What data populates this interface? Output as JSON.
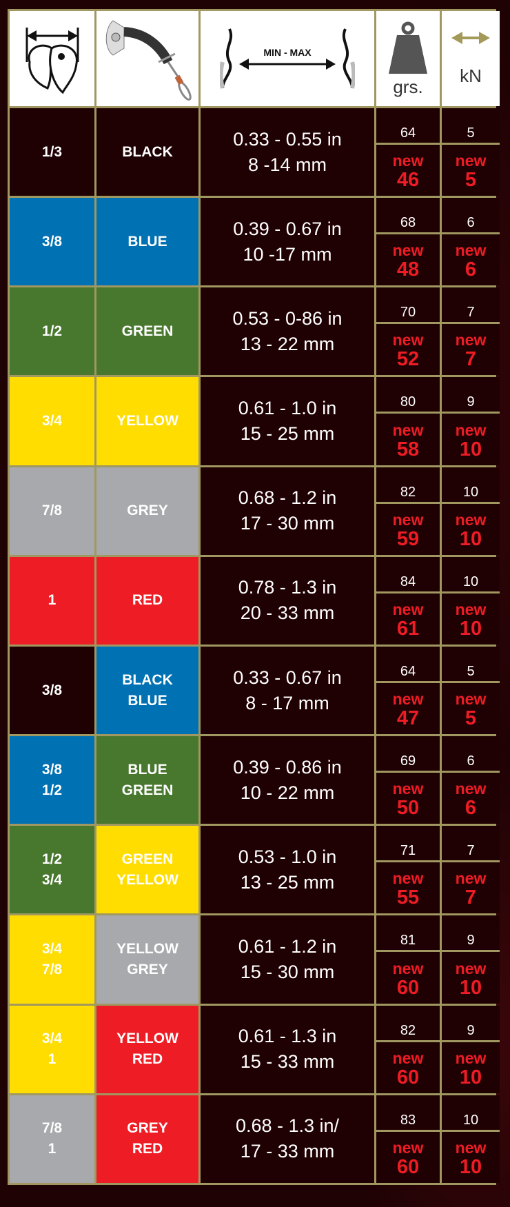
{
  "header": {
    "weight_unit": "grs.",
    "strength_unit": "kN",
    "range_label": "MIN - MAX"
  },
  "colors": {
    "black": "#200103",
    "blue": "#0071b3",
    "green": "#48772e",
    "yellow": "#ffdd00",
    "grey": "#a7a9ac",
    "red": "#ee1c25",
    "new_text": "#ee1c25",
    "border": "#a09860"
  },
  "new_label": "new",
  "rows": [
    {
      "size": "1/3",
      "size_color": "black",
      "name": "BLACK",
      "name_color": "black",
      "range": "0.33 - 0.55 in\n8 -14 mm",
      "weight": "64",
      "new_weight": "46",
      "kn": "5",
      "new_kn": "5"
    },
    {
      "size": "3/8",
      "size_color": "blue",
      "name": "BLUE",
      "name_color": "blue",
      "range": "0.39 - 0.67 in\n10 -17 mm",
      "weight": "68",
      "new_weight": "48",
      "kn": "6",
      "new_kn": "6"
    },
    {
      "size": "1/2",
      "size_color": "green",
      "name": "GREEN",
      "name_color": "green",
      "range": "0.53 - 0-86 in\n13 - 22 mm",
      "weight": "70",
      "new_weight": "52",
      "kn": "7",
      "new_kn": "7"
    },
    {
      "size": "3/4",
      "size_color": "yellow",
      "name": "YELLOW",
      "name_color": "yellow",
      "range": "0.61 - 1.0 in\n15 - 25 mm",
      "weight": "80",
      "new_weight": "58",
      "kn": "9",
      "new_kn": "10"
    },
    {
      "size": "7/8",
      "size_color": "grey",
      "name": "GREY",
      "name_color": "grey",
      "range": "0.68 - 1.2 in\n17 - 30 mm",
      "weight": "82",
      "new_weight": "59",
      "kn": "10",
      "new_kn": "10"
    },
    {
      "size": "1",
      "size_color": "red",
      "name": "RED",
      "name_color": "red",
      "range": "0.78 - 1.3 in\n20 - 33 mm",
      "weight": "84",
      "new_weight": "61",
      "kn": "10",
      "new_kn": "10"
    },
    {
      "size": "3/8",
      "size_color": "black",
      "name": "BLACK\nBLUE",
      "name_color": "blue",
      "range": "0.33 - 0.67 in\n8 - 17 mm",
      "weight": "64",
      "new_weight": "47",
      "kn": "5",
      "new_kn": "5"
    },
    {
      "size": "3/8\n1/2",
      "size_color": "blue",
      "name": "BLUE\nGREEN",
      "name_color": "green",
      "range": "0.39 - 0.86 in\n10 - 22 mm",
      "weight": "69",
      "new_weight": "50",
      "kn": "6",
      "new_kn": "6"
    },
    {
      "size": "1/2\n3/4",
      "size_color": "green",
      "name": "GREEN\nYELLOW",
      "name_color": "yellow",
      "range": "0.53 - 1.0 in\n13 - 25 mm",
      "weight": "71",
      "new_weight": "55",
      "kn": "7",
      "new_kn": "7"
    },
    {
      "size": "3/4\n7/8",
      "size_color": "yellow",
      "name": "YELLOW\nGREY",
      "name_color": "grey",
      "range": "0.61 - 1.2 in\n15 - 30 mm",
      "weight": "81",
      "new_weight": "60",
      "kn": "9",
      "new_kn": "10"
    },
    {
      "size": "3/4\n1",
      "size_color": "yellow",
      "name": "YELLOW\nRED",
      "name_color": "red",
      "range": "0.61 - 1.3 in\n15 - 33 mm",
      "weight": "82",
      "new_weight": "60",
      "kn": "9",
      "new_kn": "10"
    },
    {
      "size": "7/8\n1",
      "size_color": "grey",
      "name": "GREY\nRED",
      "name_color": "red",
      "range": "0.68 - 1.3 in/\n17 - 33 mm",
      "weight": "83",
      "new_weight": "60",
      "kn": "10",
      "new_kn": "10"
    }
  ]
}
